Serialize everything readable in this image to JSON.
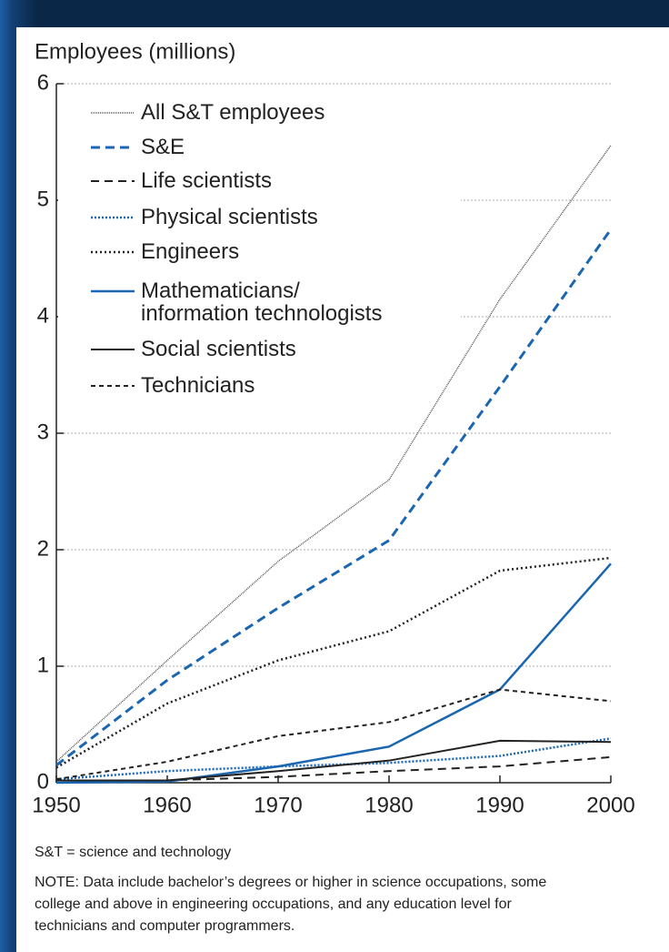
{
  "chart_data": {
    "type": "line",
    "ylabel": "Employees (millions)",
    "x": [
      1950,
      1960,
      1970,
      1980,
      1990,
      2000
    ],
    "xlim": [
      1950,
      2000
    ],
    "xticks": [
      1950,
      1960,
      1970,
      1980,
      1990,
      2000
    ],
    "ylim": [
      0,
      6
    ],
    "yticks": [
      0,
      1,
      2,
      3,
      4,
      5,
      6
    ],
    "grid": true,
    "series": [
      {
        "name": "All S&T employees",
        "color": "#555555",
        "values": [
          0.18,
          1.05,
          1.9,
          2.6,
          4.15,
          5.47
        ]
      },
      {
        "name": "S&E",
        "color": "#1a66b0",
        "values": [
          0.15,
          0.88,
          1.5,
          2.08,
          3.4,
          4.75
        ]
      },
      {
        "name": "Life scientists",
        "color": "#222222",
        "values": [
          0.02,
          0.02,
          0.05,
          0.1,
          0.14,
          0.22
        ]
      },
      {
        "name": "Physical scientists",
        "color": "#1a66b0",
        "values": [
          0.03,
          0.1,
          0.14,
          0.17,
          0.23,
          0.38
        ]
      },
      {
        "name": "Engineers",
        "color": "#222222",
        "values": [
          0.13,
          0.68,
          1.05,
          1.3,
          1.82,
          1.93
        ]
      },
      {
        "name": "Mathematicians/\ninformation technologists",
        "color": "#1a66b0",
        "values": [
          0.0,
          0.01,
          0.14,
          0.31,
          0.8,
          1.88
        ]
      },
      {
        "name": "Social scientists",
        "color": "#222222",
        "values": [
          0.02,
          0.02,
          0.1,
          0.19,
          0.36,
          0.35
        ]
      },
      {
        "name": "Technicians",
        "color": "#222222",
        "values": [
          0.03,
          0.18,
          0.4,
          0.52,
          0.8,
          0.7
        ]
      }
    ],
    "notes": [
      "S&T = science and technology",
      "NOTE: Data include bachelor’s degrees or higher in science occupations, some college and above in engineering occupations, and any education level for technicians and computer programmers."
    ]
  }
}
